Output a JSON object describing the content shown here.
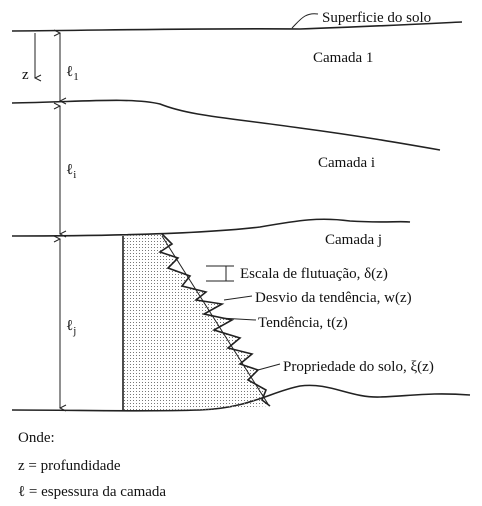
{
  "labels": {
    "surface": "Superficie do solo",
    "layer_1": "Camada 1",
    "layer_i": "Camada i",
    "layer_j": "Camada j",
    "fluctuation": "Escala de flutuação, δ(z)",
    "deviation": "Desvio da tendência, w(z)",
    "trend": "Tendência, t(z)",
    "property": "Propriedade do solo, ξ(z)",
    "depth_axis": "z",
    "thickness_1": {
      "symbol": "ℓ",
      "subscript": "1"
    },
    "thickness_i": {
      "symbol": "ℓ",
      "subscript": "i"
    },
    "thickness_j": {
      "symbol": "ℓ",
      "subscript": "j"
    }
  },
  "legend": {
    "heading": "Onde:",
    "items": [
      "z = profundidade",
      "ℓ = espessura da camada"
    ]
  }
}
